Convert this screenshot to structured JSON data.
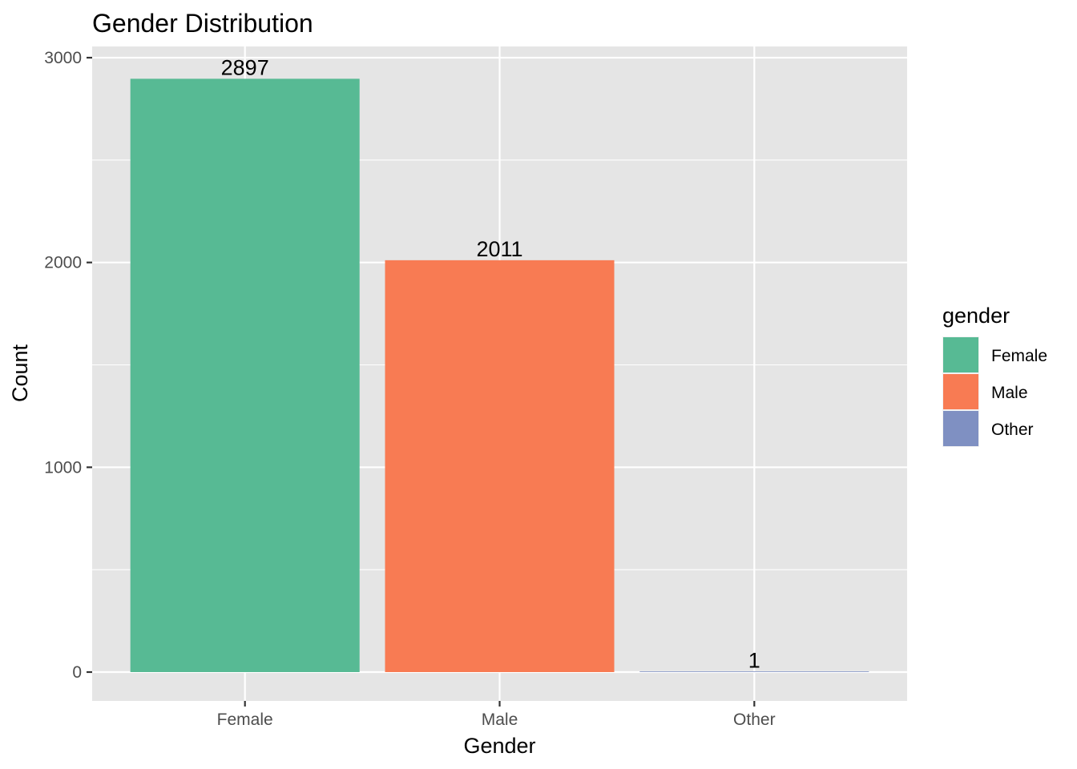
{
  "chart_data": {
    "type": "bar",
    "title": "Gender Distribution",
    "xlabel": "Gender",
    "ylabel": "Count",
    "categories": [
      "Female",
      "Male",
      "Other"
    ],
    "values": [
      2897,
      2011,
      1
    ],
    "data_labels": [
      "2897",
      "2011",
      "1"
    ],
    "ylim": [
      -142.5,
      3000
    ],
    "y_ticks": [
      0,
      1000,
      2000,
      3000
    ],
    "y_tick_labels": [
      "0",
      "1000",
      "2000",
      "3000"
    ],
    "y_minor_ticks": [
      500,
      1500,
      2500
    ],
    "grid": true,
    "legend": {
      "title": "gender",
      "position": "right",
      "entries": [
        {
          "label": "Female",
          "color": "#57BA94"
        },
        {
          "label": "Male",
          "color": "#F87B53"
        },
        {
          "label": "Other",
          "color": "#7F90C2"
        }
      ]
    }
  }
}
